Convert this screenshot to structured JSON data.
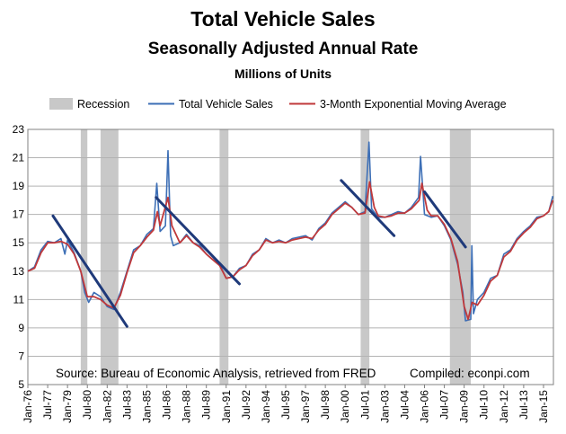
{
  "chart_data": {
    "type": "line",
    "title": "Total Vehicle Sales",
    "subtitle": "Seasonally Adjusted Annual Rate",
    "units": "Millions of Units",
    "xlabel": "",
    "ylabel": "",
    "ylim": [
      5,
      23
    ],
    "y_ticks": [
      5,
      7,
      9,
      11,
      13,
      15,
      17,
      19,
      21,
      23
    ],
    "x_range": [
      1976.0,
      2015.75
    ],
    "x_tick_labels": [
      "Jan-76",
      "Jul-77",
      "Jan-79",
      "Jul-80",
      "Jan-82",
      "Jul-83",
      "Jan-85",
      "Jul-86",
      "Jan-88",
      "Jul-89",
      "Jan-91",
      "Jul-92",
      "Jan-94",
      "Jul-95",
      "Jan-97",
      "Jul-98",
      "Jan-00",
      "Jul-01",
      "Jan-03",
      "Jul-04",
      "Jan-06",
      "Jul-07",
      "Jan-09",
      "Jul-10",
      "Jan-12",
      "Jul-13",
      "Jan-15"
    ],
    "x_tick_values": [
      1976.0,
      1977.5,
      1979.0,
      1980.5,
      1982.0,
      1983.5,
      1985.0,
      1986.5,
      1988.0,
      1989.5,
      1991.0,
      1992.5,
      1994.0,
      1995.5,
      1997.0,
      1998.5,
      2000.0,
      2001.5,
      2003.0,
      2004.5,
      2006.0,
      2007.5,
      2009.0,
      2010.5,
      2012.0,
      2013.5,
      2015.0
    ],
    "grid": true,
    "legend": {
      "position": "top",
      "entries": [
        {
          "label": "Recession",
          "color": "#c8c8c8"
        },
        {
          "label": "Total Vehicle Sales",
          "color": "#3d6fb6"
        },
        {
          "label": "3-Month Exponential Moving Average",
          "color": "#c0393b"
        }
      ]
    },
    "recessions": [
      {
        "start": 1980.0,
        "end": 1980.5
      },
      {
        "start": 1981.5,
        "end": 1982.85
      },
      {
        "start": 1990.5,
        "end": 1991.17
      },
      {
        "start": 2001.17,
        "end": 2001.83
      },
      {
        "start": 2007.92,
        "end": 2009.5
      }
    ],
    "series": [
      {
        "name": "Total Vehicle Sales",
        "color": "#3d6fb6",
        "x": [
          1976.0,
          1976.5,
          1977.0,
          1977.5,
          1978.0,
          1978.5,
          1978.8,
          1979.0,
          1979.5,
          1980.0,
          1980.3,
          1980.6,
          1981.0,
          1981.5,
          1982.0,
          1982.5,
          1983.0,
          1983.5,
          1984.0,
          1984.5,
          1985.0,
          1985.5,
          1985.75,
          1986.0,
          1986.4,
          1986.6,
          1986.8,
          1987.0,
          1987.5,
          1988.0,
          1988.5,
          1989.0,
          1989.5,
          1990.0,
          1990.5,
          1991.0,
          1991.5,
          1992.0,
          1992.5,
          1993.0,
          1993.5,
          1994.0,
          1994.5,
          1995.0,
          1995.5,
          1996.0,
          1996.5,
          1997.0,
          1997.5,
          1998.0,
          1998.5,
          1999.0,
          1999.5,
          2000.0,
          2000.5,
          2001.0,
          2001.5,
          2001.8,
          2002.0,
          2002.5,
          2003.0,
          2003.5,
          2004.0,
          2004.5,
          2005.0,
          2005.55,
          2005.7,
          2006.0,
          2006.5,
          2007.0,
          2007.5,
          2008.0,
          2008.5,
          2008.9,
          2009.1,
          2009.5,
          2009.58,
          2009.7,
          2010.0,
          2010.5,
          2011.0,
          2011.5,
          2012.0,
          2012.5,
          2013.0,
          2013.5,
          2014.0,
          2014.5,
          2015.0,
          2015.4,
          2015.7
        ],
        "values": [
          13.0,
          13.3,
          14.5,
          15.1,
          15.0,
          15.3,
          14.2,
          15.2,
          14.3,
          13.0,
          11.5,
          10.8,
          11.5,
          11.2,
          10.5,
          10.3,
          11.5,
          13.0,
          14.5,
          14.8,
          15.6,
          16.0,
          19.2,
          15.8,
          16.2,
          21.5,
          15.5,
          14.8,
          15.0,
          15.6,
          15.0,
          14.8,
          14.2,
          13.8,
          13.5,
          12.5,
          12.6,
          13.2,
          13.4,
          14.2,
          14.5,
          15.3,
          15.0,
          15.2,
          15.0,
          15.3,
          15.4,
          15.5,
          15.2,
          16.0,
          16.4,
          17.1,
          17.5,
          17.9,
          17.5,
          17.0,
          17.2,
          22.1,
          17.4,
          16.8,
          16.8,
          17.0,
          17.2,
          17.1,
          17.5,
          18.2,
          21.1,
          17.0,
          16.8,
          16.9,
          16.2,
          15.2,
          13.5,
          11.5,
          9.5,
          9.6,
          14.8,
          10.0,
          11.0,
          11.5,
          12.5,
          12.7,
          14.2,
          14.5,
          15.3,
          15.8,
          16.2,
          16.8,
          16.9,
          17.2,
          18.3
        ]
      },
      {
        "name": "3-Month Exponential Moving Average",
        "color": "#c0393b",
        "x": [
          1976.0,
          1976.5,
          1977.0,
          1977.5,
          1978.0,
          1978.5,
          1979.0,
          1979.5,
          1980.0,
          1980.5,
          1981.0,
          1981.5,
          1982.0,
          1982.5,
          1983.0,
          1983.5,
          1984.0,
          1984.5,
          1985.0,
          1985.5,
          1985.8,
          1986.0,
          1986.6,
          1986.9,
          1987.5,
          1988.0,
          1988.5,
          1989.0,
          1989.5,
          1990.0,
          1990.5,
          1991.0,
          1991.5,
          1992.0,
          1992.5,
          1993.0,
          1993.5,
          1994.0,
          1994.5,
          1995.0,
          1995.5,
          1996.0,
          1996.5,
          1997.0,
          1997.5,
          1998.0,
          1998.5,
          1999.0,
          1999.5,
          2000.0,
          2000.5,
          2001.0,
          2001.5,
          2001.85,
          2002.2,
          2002.5,
          2003.0,
          2003.5,
          2004.0,
          2004.5,
          2005.0,
          2005.6,
          2005.8,
          2006.2,
          2006.5,
          2007.0,
          2007.5,
          2008.0,
          2008.5,
          2009.0,
          2009.3,
          2009.6,
          2009.8,
          2010.0,
          2010.5,
          2011.0,
          2011.5,
          2012.0,
          2012.5,
          2013.0,
          2013.5,
          2014.0,
          2014.5,
          2015.0,
          2015.4,
          2015.7
        ],
        "values": [
          13.0,
          13.2,
          14.3,
          15.0,
          15.0,
          15.1,
          14.9,
          14.2,
          13.0,
          11.2,
          11.2,
          11.0,
          10.6,
          10.4,
          11.3,
          12.9,
          14.3,
          14.8,
          15.4,
          15.9,
          17.2,
          16.2,
          18.2,
          16.2,
          15.0,
          15.5,
          15.0,
          14.7,
          14.2,
          13.8,
          13.4,
          12.5,
          12.6,
          13.1,
          13.4,
          14.1,
          14.5,
          15.2,
          15.0,
          15.1,
          15.0,
          15.2,
          15.3,
          15.4,
          15.3,
          15.9,
          16.3,
          17.0,
          17.4,
          17.8,
          17.5,
          17.0,
          17.1,
          19.3,
          17.5,
          16.9,
          16.8,
          16.9,
          17.1,
          17.1,
          17.4,
          18.0,
          19.2,
          17.3,
          16.9,
          16.9,
          16.3,
          15.3,
          13.7,
          10.5,
          9.6,
          10.8,
          10.7,
          10.6,
          11.3,
          12.3,
          12.7,
          14.0,
          14.4,
          15.2,
          15.7,
          16.1,
          16.7,
          16.9,
          17.2,
          18.0
        ]
      }
    ],
    "trend_lines": [
      {
        "x": [
          1977.9,
          1983.5
        ],
        "values": [
          16.9,
          9.1
        ]
      },
      {
        "x": [
          1985.7,
          1992.0
        ],
        "values": [
          18.2,
          12.1
        ]
      },
      {
        "x": [
          1999.7,
          2003.7
        ],
        "values": [
          19.4,
          15.5
        ]
      },
      {
        "x": [
          2006.0,
          2009.1
        ],
        "values": [
          18.6,
          14.7
        ]
      }
    ],
    "annotations": {
      "source": "Source:  Bureau of Economic Analysis,  retrieved from FRED",
      "compiled": "Compiled:  econpi.com"
    }
  }
}
